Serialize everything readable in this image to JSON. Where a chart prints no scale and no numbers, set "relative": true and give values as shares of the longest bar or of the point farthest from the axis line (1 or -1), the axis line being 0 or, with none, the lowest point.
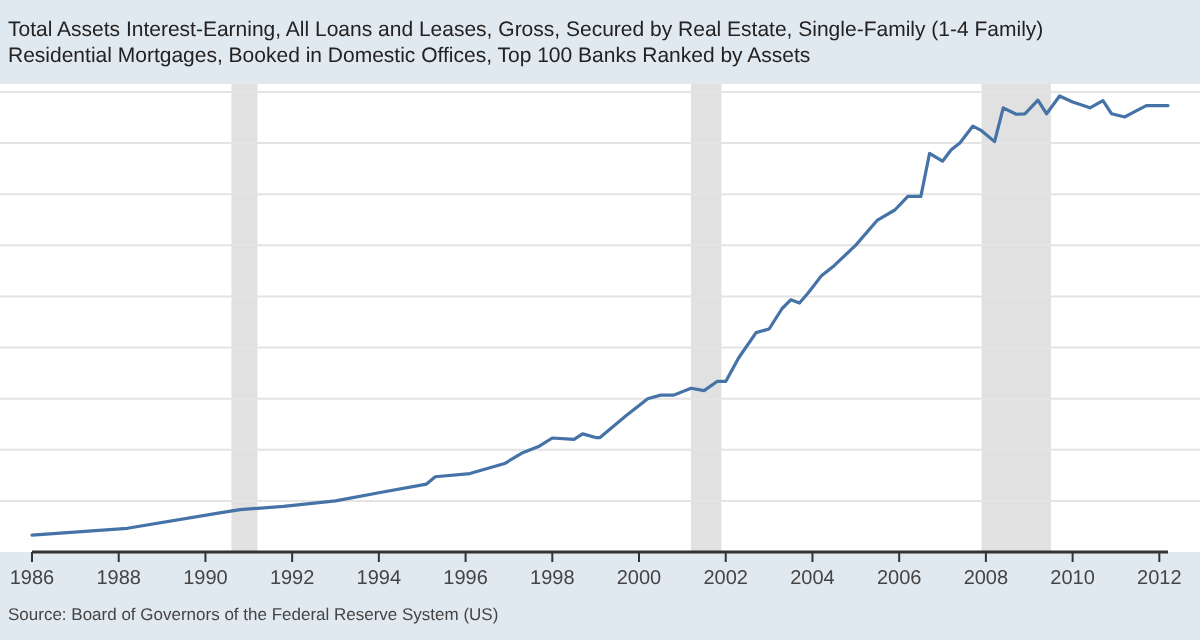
{
  "chart_data": {
    "type": "line",
    "title": "Total Assets Interest-Earning, All Loans and Leases, Gross, Secured by Real Estate, Single-Family (1-4 Family) Residential Mortgages, Booked in Domestic Offices, Top 100 Banks Ranked by Assets",
    "annotations": [
      "Source: Board of Governors of the Federal Reserve System (US)"
    ],
    "relative": true,
    "grid": "y",
    "xlim": [
      1986,
      2012.2
    ],
    "xticks": [
      1986,
      1988,
      1990,
      1992,
      1994,
      1996,
      1998,
      2000,
      2002,
      2004,
      2006,
      2008,
      2010,
      2012
    ],
    "bands": [
      {
        "axis": "x",
        "from": 1990.6,
        "to": 1991.2,
        "color": "#e1e1e1"
      },
      {
        "axis": "x",
        "from": 2001.2,
        "to": 2001.9,
        "color": "#e1e1e1"
      },
      {
        "axis": "x",
        "from": 2007.9,
        "to": 2009.5,
        "color": "#e1e1e1"
      }
    ],
    "series": [
      {
        "color": "#4572a7",
        "x": [
          1986.0,
          1988.2,
          1990.4,
          1990.8,
          1991.8,
          1993.0,
          1994.0,
          1995.1,
          1995.3,
          1996.1,
          1996.9,
          1997.3,
          1997.7,
          1998.0,
          1998.5,
          1998.7,
          1999.0,
          1999.1,
          1999.7,
          2000.2,
          2000.5,
          2000.8,
          2001.2,
          2001.5,
          2001.8,
          2002.0,
          2002.3,
          2002.7,
          2003.0,
          2003.3,
          2003.5,
          2003.7,
          2003.9,
          2004.2,
          2004.5,
          2005.0,
          2005.5,
          2005.9,
          2006.2,
          2006.5,
          2006.7,
          2007.0,
          2007.2,
          2007.4,
          2007.7,
          2007.9,
          2008.2,
          2008.4,
          2008.7,
          2008.9,
          2009.2,
          2009.4,
          2009.7,
          2010.0,
          2010.4,
          2010.7,
          2010.9,
          2011.2,
          2011.4,
          2011.7,
          2012.2
        ],
        "values": [
          0.037,
          0.052,
          0.087,
          0.093,
          0.1,
          0.112,
          0.13,
          0.149,
          0.165,
          0.172,
          0.194,
          0.217,
          0.232,
          0.25,
          0.247,
          0.259,
          0.251,
          0.251,
          0.299,
          0.336,
          0.344,
          0.344,
          0.359,
          0.354,
          0.374,
          0.374,
          0.426,
          0.481,
          0.489,
          0.534,
          0.553,
          0.546,
          0.568,
          0.605,
          0.628,
          0.673,
          0.728,
          0.75,
          0.78,
          0.78,
          0.874,
          0.857,
          0.882,
          0.897,
          0.934,
          0.924,
          0.9,
          0.974,
          0.96,
          0.961,
          0.991,
          0.961,
          1.0,
          0.987,
          0.974,
          0.99,
          0.961,
          0.954,
          0.964,
          0.979,
          0.979
        ]
      }
    ]
  }
}
